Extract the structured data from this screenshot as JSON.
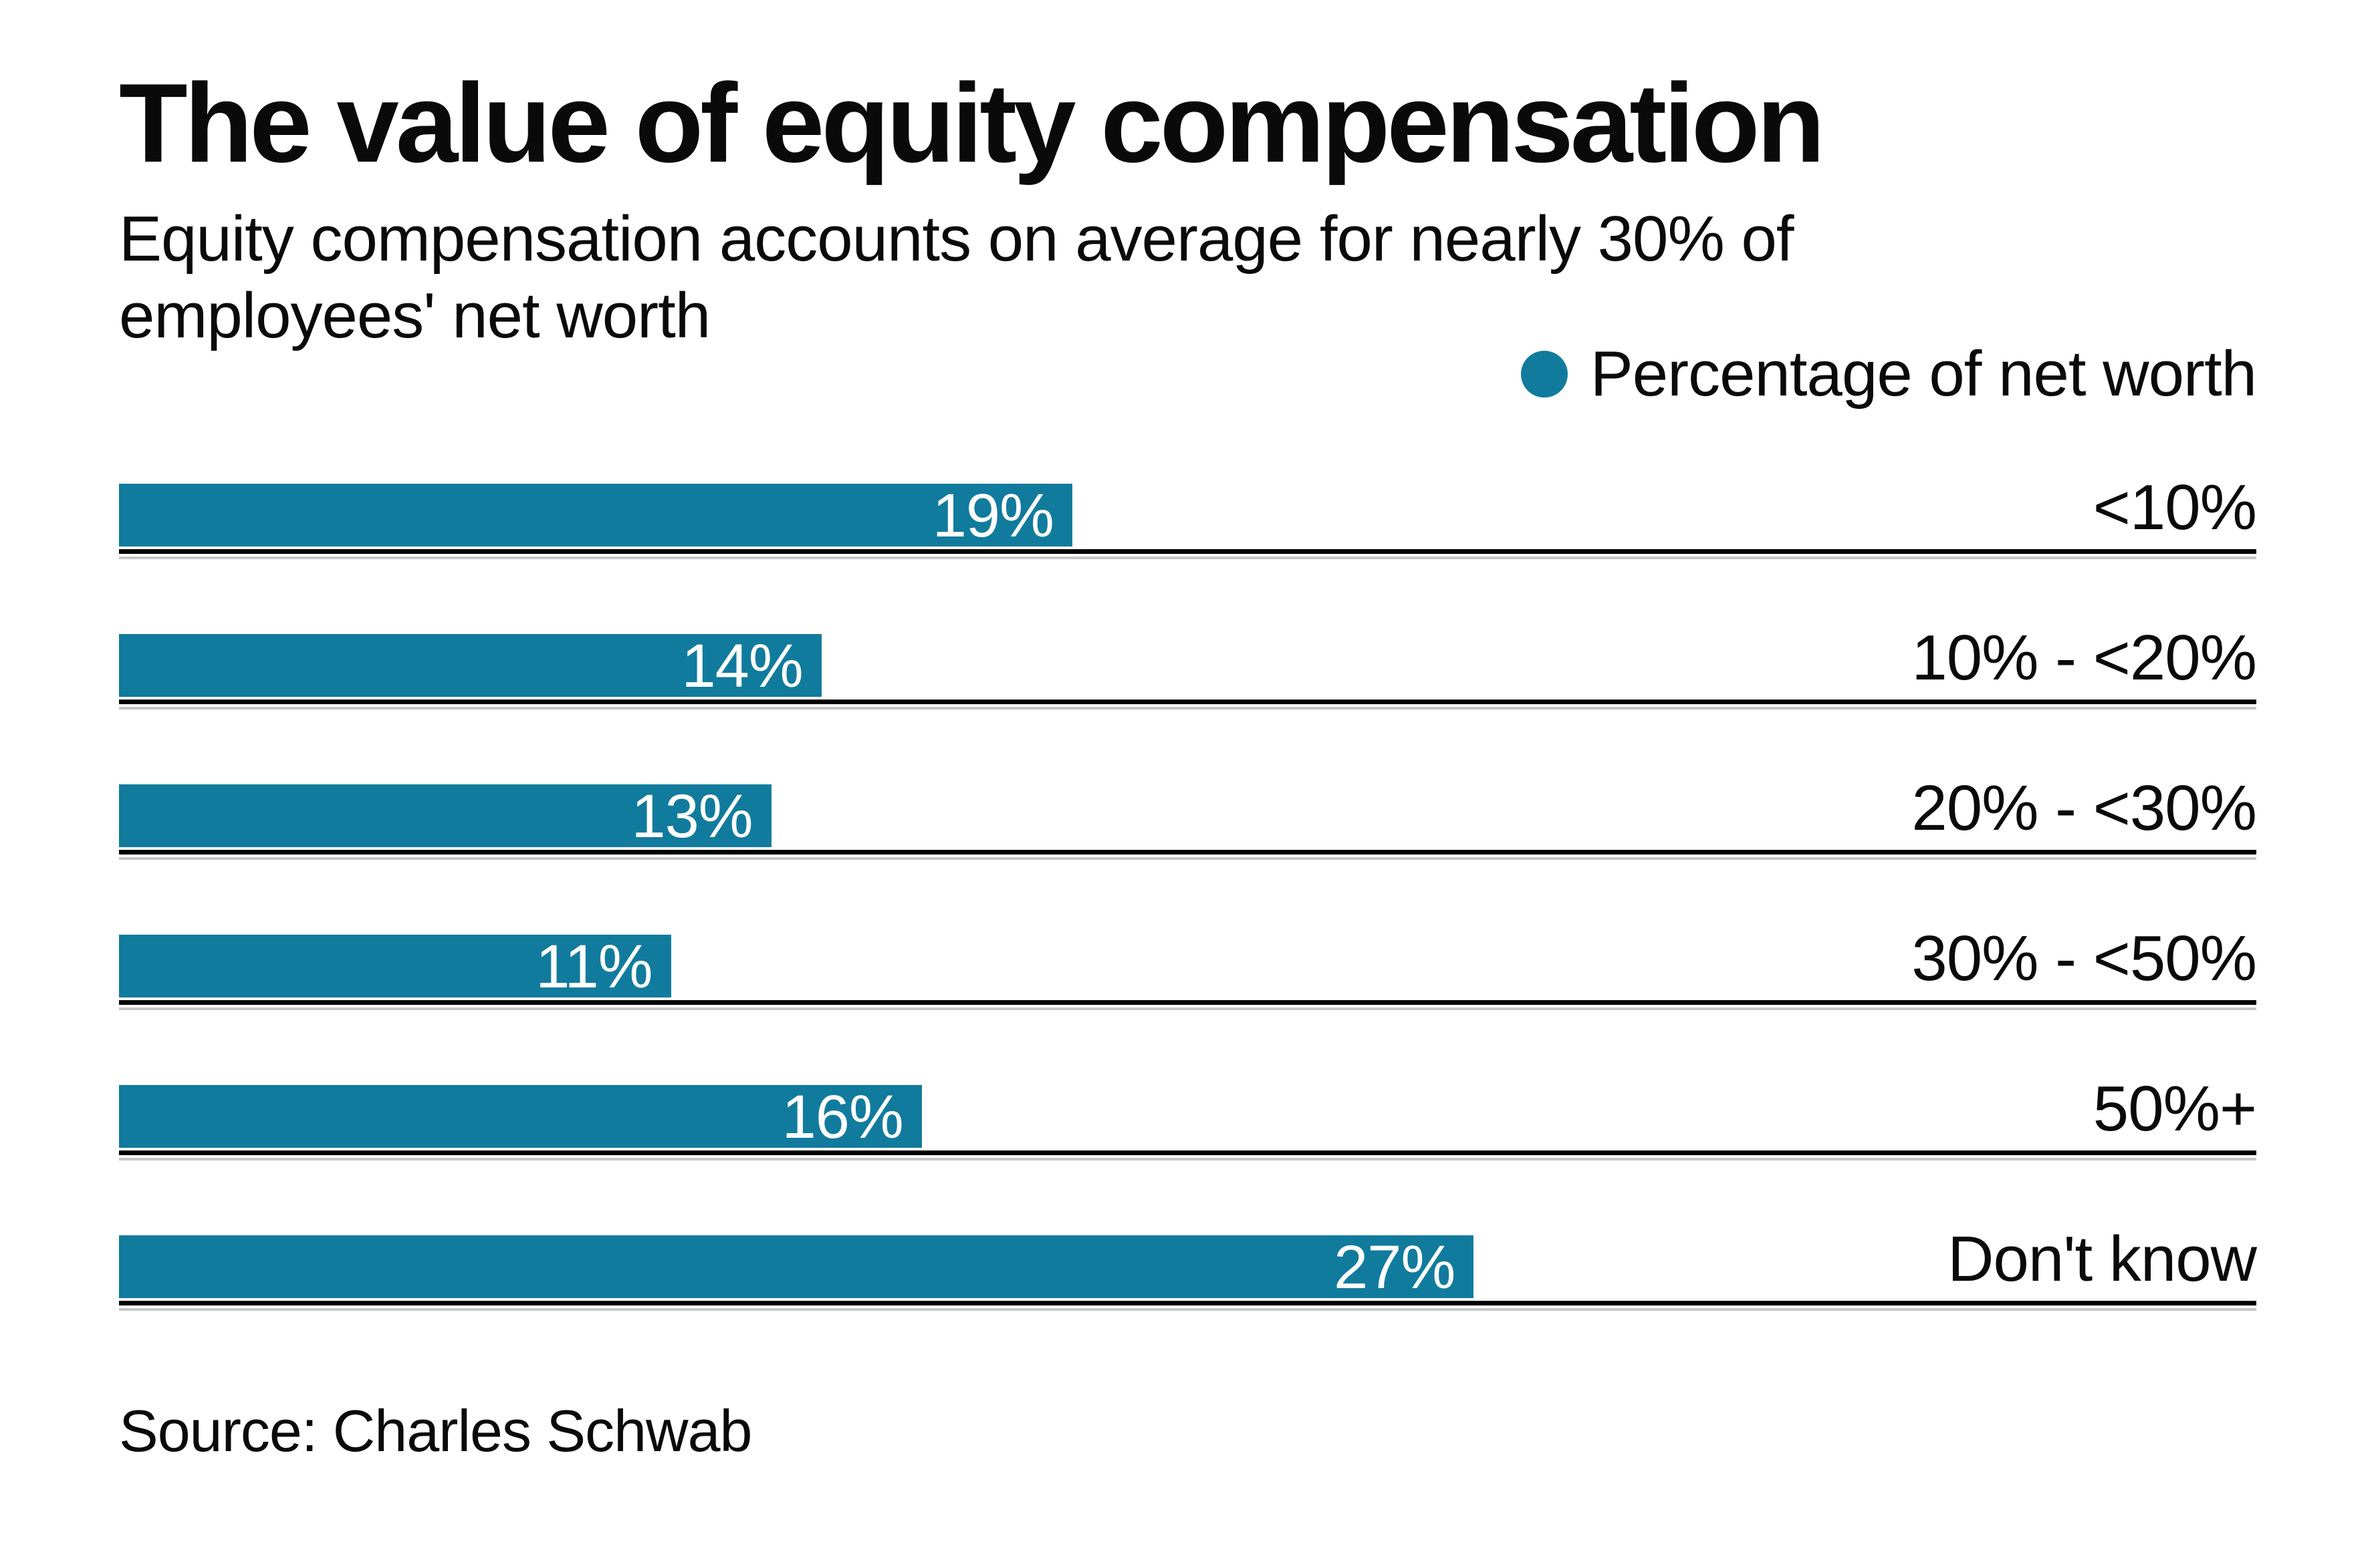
{
  "header": {
    "title": "The value of equity compensation",
    "subtitle_lines": [
      "Equity compensation accounts on average for nearly 30% of",
      "employees' net worth"
    ]
  },
  "legend": {
    "label": "Percentage of net worth",
    "marker_color": "#117b9d"
  },
  "chart_data": {
    "type": "bar",
    "orientation": "horizontal",
    "title": "The value of equity compensation",
    "subtitle": "Equity compensation accounts on average for nearly 30% of employees' net worth",
    "categories": [
      "<10%",
      "10% - <20%",
      "20% - <30%",
      "30% - <50%",
      "50%+",
      "Don't know"
    ],
    "series": [
      {
        "name": "Percentage of net worth",
        "values": [
          19,
          14,
          13,
          11,
          16,
          27
        ],
        "value_labels": [
          "19%",
          "14%",
          "13%",
          "11%",
          "16%",
          "27%"
        ]
      }
    ],
    "xlim": [
      0,
      42.6
    ],
    "grid": false,
    "legend_position": "top-right",
    "bar_color": "#117b9d",
    "value_label_color": "#ffffff",
    "baseline_color": "#000000",
    "baseline_shadow_color": "#c6c6c6"
  },
  "footer": {
    "source": "Source: Charles Schwab"
  }
}
